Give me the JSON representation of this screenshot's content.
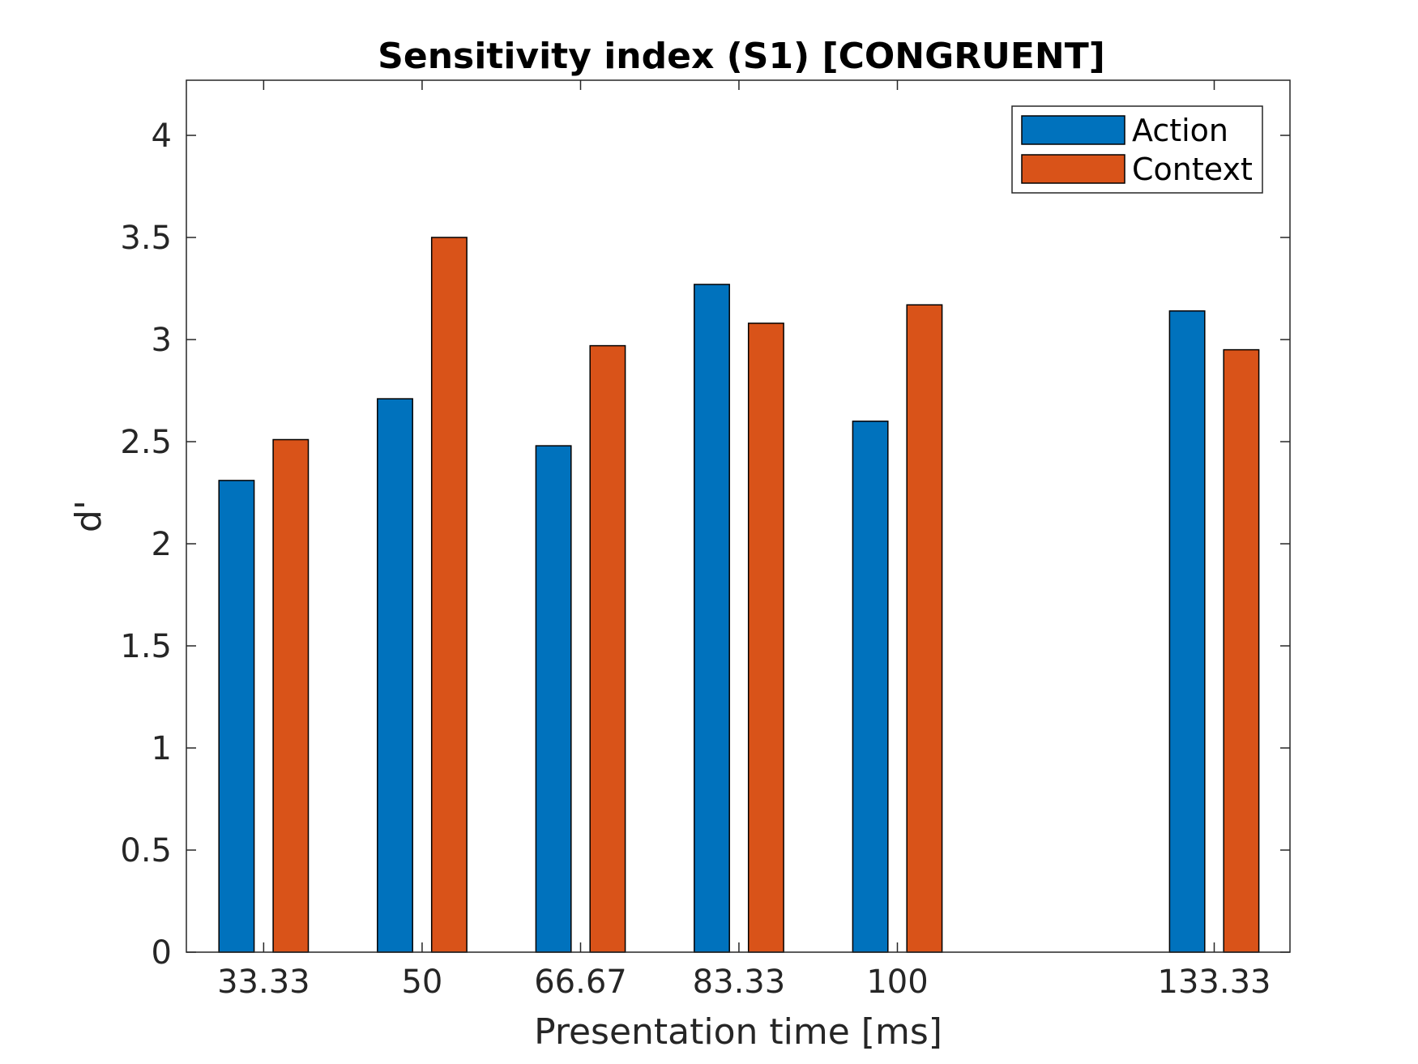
{
  "chart_data": {
    "type": "bar",
    "title": "Sensitivity index (S1) [CONGRUENT]",
    "xlabel": "Presentation time [ms]",
    "ylabel": "d'",
    "x": [
      33.33,
      50,
      66.67,
      83.33,
      100,
      133.33
    ],
    "x_tick_labels": [
      "33.33",
      "50",
      "66.67",
      "83.33",
      "100",
      "133.33"
    ],
    "y_ticks": [
      0,
      0.5,
      1,
      1.5,
      2,
      2.5,
      3,
      3.5,
      4
    ],
    "y_tick_labels": [
      "0",
      "0.5",
      "1",
      "1.5",
      "2",
      "2.5",
      "3",
      "3.5",
      "4"
    ],
    "ylim": [
      0,
      4.27
    ],
    "xlim": [
      25.2,
      141.3
    ],
    "grid": false,
    "legend_position": "top-right",
    "series": [
      {
        "name": "Action",
        "color": "#0072BD",
        "values": [
          2.31,
          2.71,
          2.48,
          3.27,
          2.6,
          3.14
        ]
      },
      {
        "name": "Context",
        "color": "#D95319",
        "values": [
          2.51,
          3.5,
          2.97,
          3.08,
          3.17,
          2.95
        ]
      }
    ]
  }
}
